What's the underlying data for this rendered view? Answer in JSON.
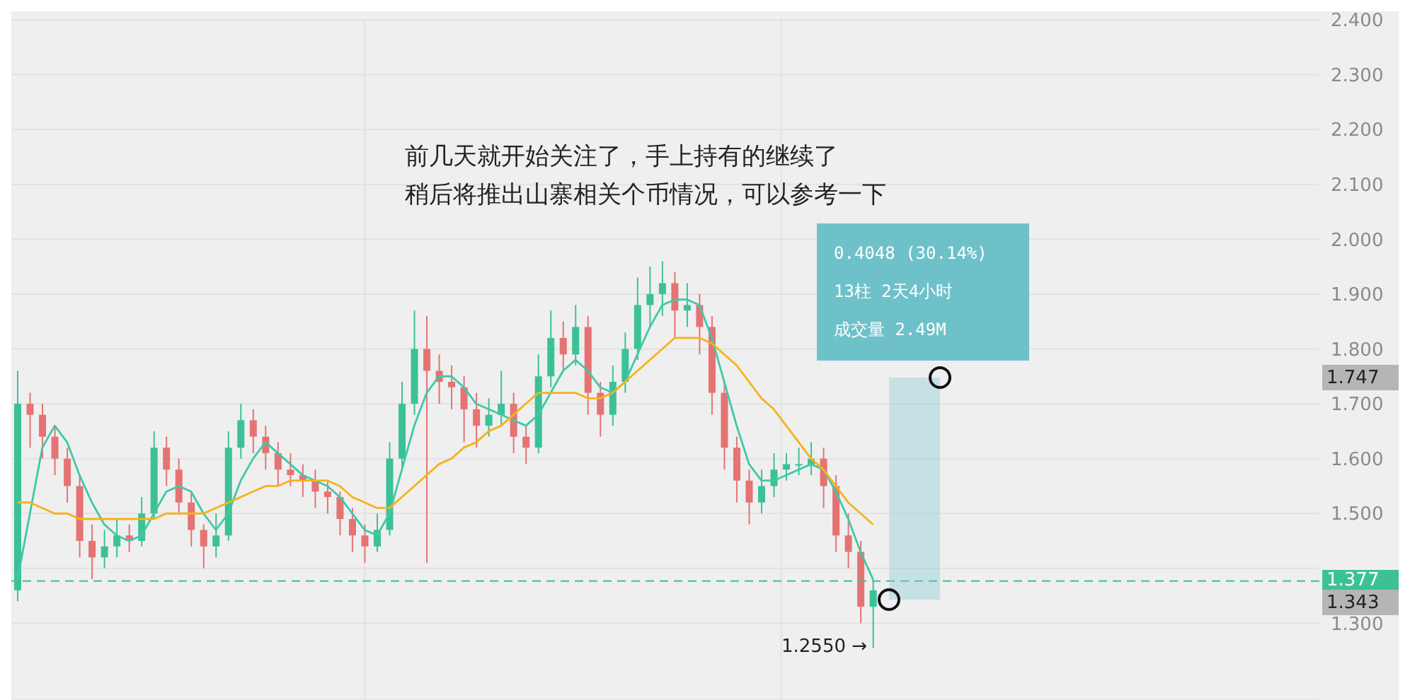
{
  "chart_data": {
    "type": "candlestick",
    "categories": [
      null,
      null,
      null,
      null,
      null,
      null,
      null,
      null,
      null,
      null,
      null,
      null,
      null,
      null,
      null,
      null,
      null,
      null,
      null,
      null,
      null,
      null,
      null,
      null,
      null,
      null,
      null,
      null,
      null,
      null,
      null,
      null,
      null,
      null,
      null,
      null,
      null,
      null,
      null,
      null,
      null,
      null,
      null,
      null,
      null,
      null,
      null,
      null,
      null,
      null,
      null,
      null,
      null,
      null,
      null,
      null,
      null,
      null,
      null,
      null,
      null,
      null,
      null,
      null,
      null,
      null,
      null,
      null,
      null,
      null
    ],
    "ohlc": [
      [
        1.36,
        1.76,
        1.34,
        1.7
      ],
      [
        1.7,
        1.72,
        1.62,
        1.68
      ],
      [
        1.68,
        1.7,
        1.6,
        1.64
      ],
      [
        1.64,
        1.66,
        1.57,
        1.6
      ],
      [
        1.6,
        1.62,
        1.52,
        1.55
      ],
      [
        1.55,
        1.57,
        1.42,
        1.45
      ],
      [
        1.45,
        1.48,
        1.38,
        1.42
      ],
      [
        1.42,
        1.47,
        1.4,
        1.44
      ],
      [
        1.44,
        1.49,
        1.42,
        1.46
      ],
      [
        1.46,
        1.48,
        1.43,
        1.45
      ],
      [
        1.45,
        1.53,
        1.44,
        1.5
      ],
      [
        1.5,
        1.65,
        1.49,
        1.62
      ],
      [
        1.62,
        1.64,
        1.55,
        1.58
      ],
      [
        1.58,
        1.6,
        1.5,
        1.52
      ],
      [
        1.52,
        1.54,
        1.44,
        1.47
      ],
      [
        1.47,
        1.48,
        1.4,
        1.44
      ],
      [
        1.44,
        1.5,
        1.42,
        1.46
      ],
      [
        1.46,
        1.65,
        1.45,
        1.62
      ],
      [
        1.62,
        1.7,
        1.6,
        1.67
      ],
      [
        1.67,
        1.69,
        1.61,
        1.64
      ],
      [
        1.64,
        1.66,
        1.58,
        1.61
      ],
      [
        1.61,
        1.63,
        1.55,
        1.58
      ],
      [
        1.58,
        1.61,
        1.55,
        1.57
      ],
      [
        1.57,
        1.59,
        1.53,
        1.56
      ],
      [
        1.56,
        1.58,
        1.51,
        1.54
      ],
      [
        1.54,
        1.56,
        1.5,
        1.53
      ],
      [
        1.53,
        1.54,
        1.46,
        1.49
      ],
      [
        1.49,
        1.51,
        1.43,
        1.46
      ],
      [
        1.46,
        1.48,
        1.41,
        1.44
      ],
      [
        1.44,
        1.5,
        1.43,
        1.47
      ],
      [
        1.47,
        1.63,
        1.46,
        1.6
      ],
      [
        1.6,
        1.74,
        1.58,
        1.7
      ],
      [
        1.7,
        1.87,
        1.68,
        1.8
      ],
      [
        1.8,
        1.86,
        1.41,
        1.76
      ],
      [
        1.76,
        1.79,
        1.7,
        1.74
      ],
      [
        1.74,
        1.77,
        1.69,
        1.73
      ],
      [
        1.73,
        1.75,
        1.63,
        1.69
      ],
      [
        1.69,
        1.72,
        1.62,
        1.66
      ],
      [
        1.66,
        1.71,
        1.64,
        1.68
      ],
      [
        1.68,
        1.76,
        1.66,
        1.7
      ],
      [
        1.7,
        1.72,
        1.61,
        1.64
      ],
      [
        1.64,
        1.66,
        1.59,
        1.62
      ],
      [
        1.62,
        1.79,
        1.61,
        1.75
      ],
      [
        1.75,
        1.87,
        1.73,
        1.82
      ],
      [
        1.82,
        1.85,
        1.76,
        1.79
      ],
      [
        1.79,
        1.88,
        1.77,
        1.84
      ],
      [
        1.84,
        1.86,
        1.68,
        1.72
      ],
      [
        1.72,
        1.74,
        1.64,
        1.68
      ],
      [
        1.68,
        1.77,
        1.66,
        1.74
      ],
      [
        1.74,
        1.83,
        1.72,
        1.8
      ],
      [
        1.8,
        1.93,
        1.78,
        1.88
      ],
      [
        1.88,
        1.95,
        1.84,
        1.9
      ],
      [
        1.9,
        1.96,
        1.86,
        1.92
      ],
      [
        1.92,
        1.94,
        1.82,
        1.87
      ],
      [
        1.87,
        1.92,
        1.84,
        1.88
      ],
      [
        1.88,
        1.9,
        1.79,
        1.84
      ],
      [
        1.84,
        1.86,
        1.68,
        1.72
      ],
      [
        1.72,
        1.74,
        1.58,
        1.62
      ],
      [
        1.62,
        1.64,
        1.52,
        1.56
      ],
      [
        1.56,
        1.58,
        1.48,
        1.52
      ],
      [
        1.52,
        1.58,
        1.5,
        1.55
      ],
      [
        1.55,
        1.61,
        1.53,
        1.58
      ],
      [
        1.58,
        1.61,
        1.56,
        1.59
      ],
      [
        1.59,
        1.62,
        1.57,
        1.59
      ],
      [
        1.59,
        1.63,
        1.57,
        1.6
      ],
      [
        1.6,
        1.62,
        1.51,
        1.55
      ],
      [
        1.55,
        1.57,
        1.43,
        1.46
      ],
      [
        1.46,
        1.5,
        1.4,
        1.43
      ],
      [
        1.43,
        1.45,
        1.3,
        1.33
      ],
      [
        1.33,
        1.38,
        1.255,
        1.36
      ]
    ],
    "series": [
      {
        "type": "line",
        "color": "#3fc8a8",
        "values": [
          1.38,
          1.5,
          1.62,
          1.66,
          1.63,
          1.57,
          1.52,
          1.48,
          1.46,
          1.45,
          1.46,
          1.5,
          1.54,
          1.55,
          1.54,
          1.5,
          1.47,
          1.5,
          1.56,
          1.6,
          1.63,
          1.61,
          1.59,
          1.57,
          1.56,
          1.55,
          1.53,
          1.5,
          1.47,
          1.46,
          1.5,
          1.58,
          1.66,
          1.72,
          1.75,
          1.75,
          1.73,
          1.7,
          1.69,
          1.68,
          1.67,
          1.66,
          1.68,
          1.72,
          1.76,
          1.78,
          1.76,
          1.73,
          1.72,
          1.74,
          1.79,
          1.84,
          1.88,
          1.89,
          1.89,
          1.88,
          1.82,
          1.74,
          1.66,
          1.59,
          1.56,
          1.56,
          1.57,
          1.58,
          1.59,
          1.58,
          1.54,
          1.49,
          1.43,
          1.38
        ]
      },
      {
        "type": "line",
        "color": "#f5b21b",
        "values": [
          1.52,
          1.52,
          1.51,
          1.5,
          1.5,
          1.49,
          1.49,
          1.49,
          1.49,
          1.49,
          1.49,
          1.49,
          1.5,
          1.5,
          1.5,
          1.5,
          1.51,
          1.52,
          1.53,
          1.54,
          1.55,
          1.55,
          1.56,
          1.56,
          1.56,
          1.56,
          1.55,
          1.53,
          1.52,
          1.51,
          1.51,
          1.53,
          1.55,
          1.57,
          1.59,
          1.6,
          1.62,
          1.63,
          1.65,
          1.66,
          1.68,
          1.7,
          1.72,
          1.72,
          1.72,
          1.72,
          1.71,
          1.71,
          1.72,
          1.74,
          1.76,
          1.78,
          1.8,
          1.82,
          1.82,
          1.82,
          1.81,
          1.79,
          1.77,
          1.74,
          1.71,
          1.69,
          1.66,
          1.63,
          1.6,
          1.58,
          1.55,
          1.52,
          1.5,
          1.48
        ]
      }
    ],
    "ylim": [
      1.16,
      2.4
    ],
    "yticks": [
      {
        "value": 1.3,
        "label": "1.300"
      },
      {
        "value": 1.4,
        "label": null
      },
      {
        "value": 1.5,
        "label": "1.500"
      },
      {
        "value": 1.6,
        "label": "1.600"
      },
      {
        "value": 1.7,
        "label": "1.700"
      },
      {
        "value": 1.8,
        "label": "1.800"
      },
      {
        "value": 1.9,
        "label": "1.900"
      },
      {
        "value": 2.0,
        "label": "2.000"
      },
      {
        "value": 2.1,
        "label": "2.100"
      },
      {
        "value": 2.2,
        "label": "2.200"
      },
      {
        "value": 2.3,
        "label": "2.300"
      },
      {
        "value": 2.4,
        "label": "2.400"
      }
    ],
    "tick_labels": "y",
    "grid": true,
    "legend": false,
    "marker": "none",
    "line_style": "solid",
    "ref_lines": [
      {
        "axis": "y",
        "value": 1.377,
        "label": "1.377",
        "color": "#3cc197",
        "line_style": "dashed"
      }
    ],
    "annotations": [
      "前几天就开始关注了，手上持有的继续了",
      "稍后将推出山寨相关个币情况，可以参考一下",
      "0.4048 (30.14%)",
      "13柱 2天4小时",
      "成交量 2.49M",
      "1.747",
      "1.343",
      "1.2550 →"
    ]
  }
}
